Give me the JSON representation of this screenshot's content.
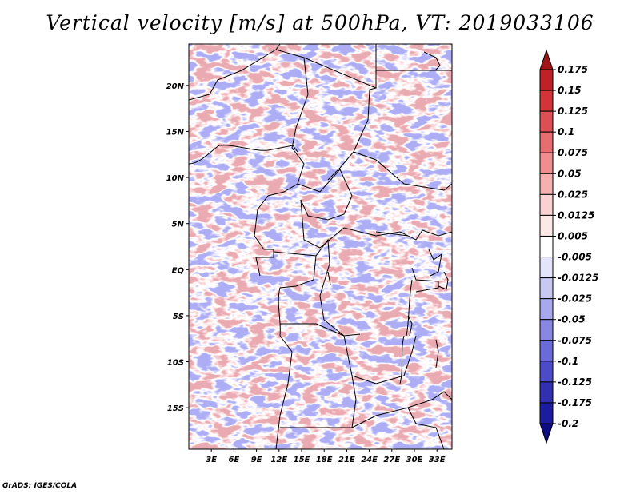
{
  "title": "Vertical velocity [m/s] at 500hPa, VT: 2019033106",
  "credit": "GrADS: IGES/COLA",
  "lat_labels": [
    "20N",
    "15N",
    "10N",
    "5N",
    "EQ",
    "5S",
    "10S",
    "15S"
  ],
  "lat_values": [
    20,
    15,
    10,
    5,
    0,
    -5,
    -10,
    -15
  ],
  "lon_labels": [
    "3E",
    "6E",
    "9E",
    "12E",
    "15E",
    "18E",
    "21E",
    "24E",
    "27E",
    "30E",
    "33E"
  ],
  "lon_values": [
    3,
    6,
    9,
    12,
    15,
    18,
    21,
    24,
    27,
    30,
    33
  ],
  "map_extent": {
    "lon": [
      0,
      35
    ],
    "lat": [
      -19.5,
      24.5
    ]
  },
  "colorbar": {
    "labels": [
      "0.175",
      "0.15",
      "0.125",
      "0.1",
      "0.075",
      "0.05",
      "0.025",
      "0.0125",
      "0.005",
      "-0.005",
      "-0.0125",
      "-0.025",
      "-0.05",
      "-0.075",
      "-0.1",
      "-0.125",
      "-0.175",
      "-0.2"
    ],
    "colors": [
      "#a01418",
      "#be2228",
      "#d2343a",
      "#dc5055",
      "#e66e70",
      "#ee8e8e",
      "#f5b0b0",
      "#fad0d0",
      "#fde8e8",
      "#ffffff",
      "#e4e4fa",
      "#c8c8f2",
      "#a8a8ec",
      "#8888e2",
      "#6a6ad8",
      "#4c4cc8",
      "#3030b0",
      "#1c1ca0",
      "#0c0c80"
    ]
  }
}
